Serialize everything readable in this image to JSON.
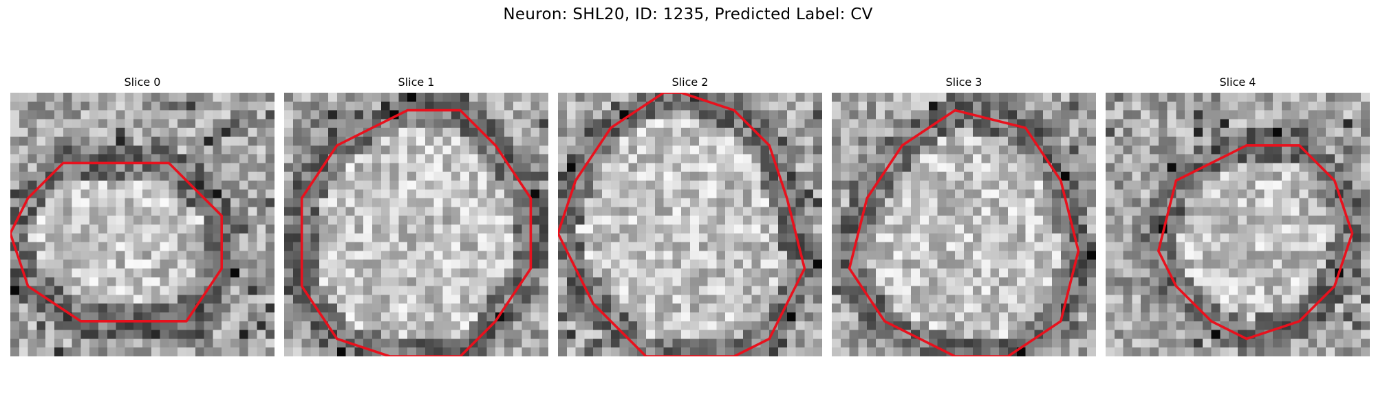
{
  "figure": {
    "title": "Neuron: SHL20, ID: 1235, Predicted Label: CV"
  },
  "panels": [
    {
      "title": "Slice 0",
      "contour": [
        [
          5,
          4
        ],
        [
          9,
          4
        ],
        [
          12,
          7
        ],
        [
          12,
          10
        ],
        [
          10,
          13
        ],
        [
          4,
          13
        ],
        [
          1,
          11
        ],
        [
          0,
          8
        ],
        [
          1,
          6
        ],
        [
          3,
          4
        ]
      ]
    },
    {
      "title": "Slice 1",
      "contour": [
        [
          7,
          1
        ],
        [
          10,
          1
        ],
        [
          12,
          3
        ],
        [
          14,
          6
        ],
        [
          14,
          10
        ],
        [
          12,
          13
        ],
        [
          10,
          15
        ],
        [
          8,
          15
        ],
        [
          6,
          15
        ],
        [
          3,
          14
        ],
        [
          1,
          11
        ],
        [
          1,
          6
        ],
        [
          3,
          3
        ],
        [
          5,
          2
        ]
      ]
    },
    {
      "title": "Slice 2",
      "contour": [
        [
          7,
          0
        ],
        [
          10,
          1
        ],
        [
          12,
          3
        ],
        [
          13,
          6
        ],
        [
          14,
          10
        ],
        [
          12,
          14
        ],
        [
          10,
          15
        ],
        [
          5,
          15
        ],
        [
          2,
          12
        ],
        [
          0,
          8
        ],
        [
          1,
          5
        ],
        [
          3,
          2
        ],
        [
          6,
          0
        ]
      ]
    },
    {
      "title": "Slice 3",
      "contour": [
        [
          7,
          1
        ],
        [
          11,
          2
        ],
        [
          13,
          5
        ],
        [
          14,
          9
        ],
        [
          13,
          13
        ],
        [
          10,
          15
        ],
        [
          7,
          15
        ],
        [
          3,
          13
        ],
        [
          1,
          10
        ],
        [
          2,
          6
        ],
        [
          4,
          3
        ]
      ]
    },
    {
      "title": "Slice 4",
      "contour": [
        [
          8,
          3
        ],
        [
          11,
          3
        ],
        [
          13,
          5
        ],
        [
          14,
          8
        ],
        [
          13,
          11
        ],
        [
          11,
          13
        ],
        [
          8,
          14
        ],
        [
          6,
          13
        ],
        [
          4,
          11
        ],
        [
          3,
          9
        ],
        [
          4,
          5
        ],
        [
          6,
          4
        ]
      ]
    }
  ],
  "colors": {
    "contour": "#e8111d",
    "background": "#ffffff"
  }
}
